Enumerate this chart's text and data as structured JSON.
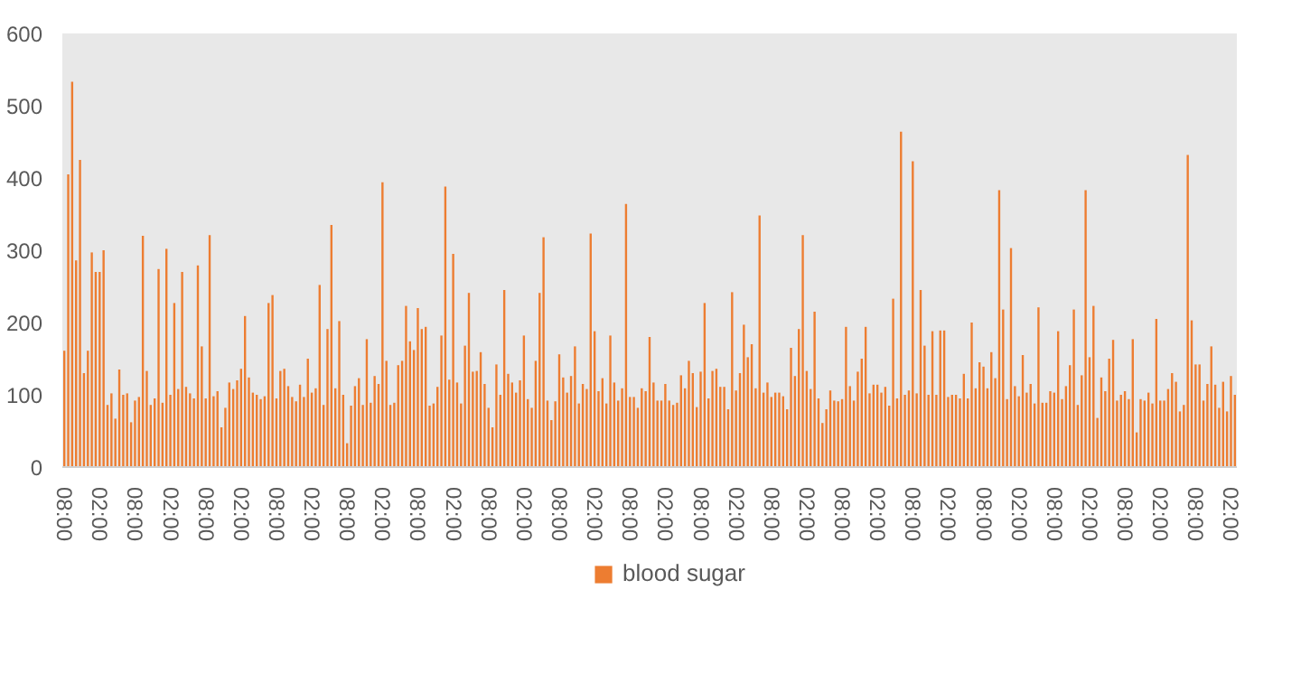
{
  "chart_data": {
    "type": "bar",
    "categories": [
      "08:00",
      null,
      null,
      null,
      null,
      null,
      null,
      null,
      null,
      "02:00",
      null,
      null,
      null,
      null,
      null,
      null,
      null,
      null,
      "08:00",
      null,
      null,
      null,
      null,
      null,
      null,
      null,
      null,
      "02:00",
      null,
      null,
      null,
      null,
      null,
      null,
      null,
      null,
      "08:00",
      null,
      null,
      null,
      null,
      null,
      null,
      null,
      null,
      "02:00",
      null,
      null,
      null,
      null,
      null,
      null,
      null,
      null,
      "08:00",
      null,
      null,
      null,
      null,
      null,
      null,
      null,
      null,
      "02:00",
      null,
      null,
      null,
      null,
      null,
      null,
      null,
      null,
      "08:00",
      null,
      null,
      null,
      null,
      null,
      null,
      null,
      null,
      "02:00",
      null,
      null,
      null,
      null,
      null,
      null,
      null,
      null,
      "08:00",
      null,
      null,
      null,
      null,
      null,
      null,
      null,
      null,
      "02:00",
      null,
      null,
      null,
      null,
      null,
      null,
      null,
      null,
      "08:00",
      null,
      null,
      null,
      null,
      null,
      null,
      null,
      null,
      "02:00",
      null,
      null,
      null,
      null,
      null,
      null,
      null,
      null,
      "08:00",
      null,
      null,
      null,
      null,
      null,
      null,
      null,
      null,
      "02:00",
      null,
      null,
      null,
      null,
      null,
      null,
      null,
      null,
      "08:00",
      null,
      null,
      null,
      null,
      null,
      null,
      null,
      null,
      "02:00",
      null,
      null,
      null,
      null,
      null,
      null,
      null,
      null,
      "08:00",
      null,
      null,
      null,
      null,
      null,
      null,
      null,
      null,
      "02:00",
      null,
      null,
      null,
      null,
      null,
      null,
      null,
      null,
      "08:00",
      null,
      null,
      null,
      null,
      null,
      null,
      null,
      null,
      "02:00",
      null,
      null,
      null,
      null,
      null,
      null,
      null,
      null,
      "08:00",
      null,
      null,
      null,
      null,
      null,
      null,
      null,
      null,
      "02:00",
      null,
      null,
      null,
      null,
      null,
      null,
      null,
      null,
      "08:00",
      null,
      null,
      null,
      null,
      null,
      null,
      null,
      null,
      "02:00",
      null,
      null,
      null,
      null,
      null,
      null,
      null,
      null,
      "08:00",
      null,
      null,
      null,
      null,
      null,
      null,
      null,
      null,
      "02:00",
      null,
      null,
      null,
      null,
      null,
      null,
      null,
      null,
      "08:00",
      null,
      null,
      null,
      null,
      null,
      null,
      null,
      null,
      "02:00",
      null,
      null,
      null,
      null,
      null,
      null,
      null,
      null,
      "08:00",
      null,
      null,
      null,
      null,
      null,
      null,
      null,
      null,
      "02:00",
      null,
      null,
      null,
      null,
      null,
      null,
      null,
      null,
      "08:00",
      null,
      null,
      null,
      null,
      null,
      null,
      null,
      null,
      "02:00",
      null
    ],
    "series": [
      {
        "name": "blood sugar",
        "color": "#ed7d31",
        "values": [
          161,
          405,
          533,
          286,
          425,
          130,
          161,
          297,
          270,
          270,
          300,
          86,
          102,
          67,
          135,
          100,
          102,
          62,
          92,
          97,
          320,
          133,
          86,
          95,
          274,
          89,
          302,
          100,
          227,
          108,
          270,
          111,
          102,
          95,
          279,
          167,
          95,
          321,
          98,
          105,
          55,
          82,
          117,
          108,
          120,
          136,
          209,
          124,
          103,
          100,
          94,
          98,
          227,
          238,
          95,
          133,
          136,
          112,
          97,
          91,
          114,
          97,
          150,
          103,
          109,
          252,
          86,
          191,
          335,
          109,
          202,
          100,
          33,
          85,
          112,
          123,
          86,
          177,
          89,
          126,
          115,
          394,
          147,
          86,
          89,
          141,
          147,
          223,
          174,
          162,
          220,
          191,
          194,
          85,
          88,
          111,
          182,
          388,
          121,
          295,
          117,
          88,
          168,
          241,
          132,
          133,
          159,
          115,
          82,
          55,
          142,
          100,
          245,
          129,
          117,
          103,
          120,
          182,
          94,
          82,
          147,
          241,
          318,
          92,
          65,
          91,
          156,
          124,
          103,
          126,
          167,
          88,
          115,
          108,
          323,
          188,
          105,
          123,
          88,
          182,
          117,
          92,
          109,
          364,
          97,
          97,
          82,
          109,
          105,
          180,
          117,
          92,
          92,
          115,
          92,
          86,
          89,
          127,
          109,
          147,
          130,
          83,
          132,
          227,
          95,
          133,
          136,
          111,
          111,
          80,
          242,
          106,
          130,
          197,
          152,
          170,
          109,
          348,
          103,
          117,
          97,
          103,
          103,
          98,
          80,
          165,
          126,
          191,
          321,
          133,
          108,
          215,
          95,
          61,
          80,
          106,
          92,
          91,
          94,
          194,
          112,
          92,
          132,
          150,
          194,
          102,
          114,
          114,
          103,
          111,
          85,
          233,
          95,
          464,
          100,
          106,
          423,
          102,
          245,
          168,
          100,
          188,
          100,
          189,
          189,
          97,
          100,
          100,
          95,
          129,
          95,
          200,
          109,
          145,
          139,
          109,
          159,
          123,
          383,
          218,
          94,
          303,
          112,
          98,
          155,
          103,
          115,
          88,
          221,
          89,
          89,
          105,
          103,
          188,
          94,
          112,
          141,
          218,
          86,
          127,
          383,
          152,
          223,
          68,
          124,
          105,
          150,
          176,
          92,
          100,
          105,
          94,
          177,
          48,
          94,
          92,
          103,
          88,
          205,
          92,
          92,
          108,
          130,
          118,
          77,
          86,
          432,
          203,
          142,
          142,
          92,
          115,
          167,
          114,
          82,
          118,
          77,
          126,
          100
        ]
      }
    ],
    "ylim": [
      0,
      600
    ],
    "yticks": [
      0,
      100,
      200,
      300,
      400,
      500,
      600
    ],
    "grid": false,
    "legend": "bottom"
  }
}
